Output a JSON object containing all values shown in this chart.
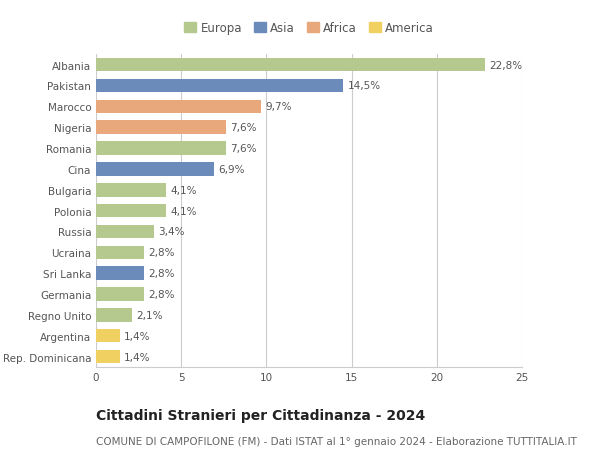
{
  "countries": [
    "Albania",
    "Pakistan",
    "Marocco",
    "Nigeria",
    "Romania",
    "Cina",
    "Bulgaria",
    "Polonia",
    "Russia",
    "Ucraina",
    "Sri Lanka",
    "Germania",
    "Regno Unito",
    "Argentina",
    "Rep. Dominicana"
  ],
  "values": [
    22.8,
    14.5,
    9.7,
    7.6,
    7.6,
    6.9,
    4.1,
    4.1,
    3.4,
    2.8,
    2.8,
    2.8,
    2.1,
    1.4,
    1.4
  ],
  "labels": [
    "22,8%",
    "14,5%",
    "9,7%",
    "7,6%",
    "7,6%",
    "6,9%",
    "4,1%",
    "4,1%",
    "3,4%",
    "2,8%",
    "2,8%",
    "2,8%",
    "2,1%",
    "1,4%",
    "1,4%"
  ],
  "continents": [
    "Europa",
    "Asia",
    "Africa",
    "Africa",
    "Europa",
    "Asia",
    "Europa",
    "Europa",
    "Europa",
    "Europa",
    "Asia",
    "Europa",
    "Europa",
    "America",
    "America"
  ],
  "colors": {
    "Europa": "#b5c98e",
    "Asia": "#6b8cba",
    "Africa": "#e8a87c",
    "America": "#f0d060"
  },
  "legend_order": [
    "Europa",
    "Asia",
    "Africa",
    "America"
  ],
  "title": "Cittadini Stranieri per Cittadinanza - 2024",
  "subtitle": "COMUNE DI CAMPOFILONE (FM) - Dati ISTAT al 1° gennaio 2024 - Elaborazione TUTTITALIA.IT",
  "xlim": [
    0,
    25
  ],
  "xticks": [
    0,
    5,
    10,
    15,
    20,
    25
  ],
  "bg_color": "#ffffff",
  "grid_color": "#cccccc",
  "bar_height": 0.65,
  "title_fontsize": 10,
  "subtitle_fontsize": 7.5,
  "label_fontsize": 7.5,
  "tick_fontsize": 7.5,
  "legend_fontsize": 8.5
}
